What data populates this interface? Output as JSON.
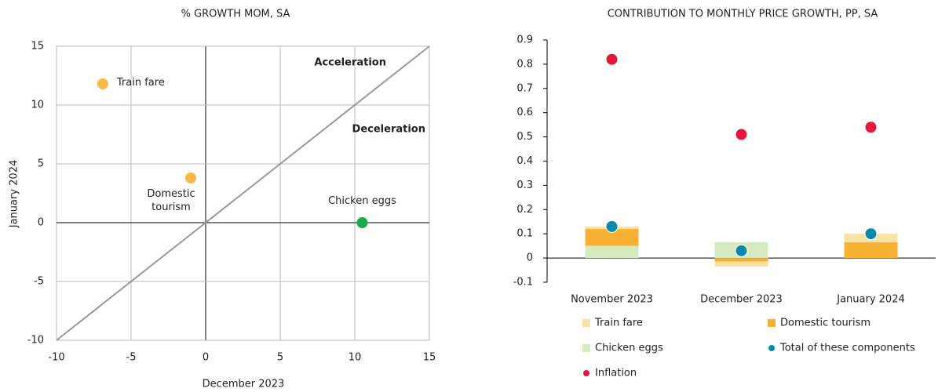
{
  "chart_data": [
    {
      "type": "scatter",
      "title": "% GROWTH MOM, SA",
      "x_label": "December 2023",
      "y_label": "January 2024",
      "xlim": [
        -10,
        15
      ],
      "ylim": [
        -10,
        15
      ],
      "xticks": [
        -10,
        -5,
        0,
        5,
        10,
        15
      ],
      "yticks": [
        -10,
        -5,
        0,
        5,
        10,
        15
      ],
      "grid": true,
      "annotations": [
        "Acceleration",
        "Deceleration"
      ],
      "series": [
        {
          "name": "Train fare",
          "color": "#f9b84a",
          "x": [
            -6.9
          ],
          "values": [
            11.8
          ]
        },
        {
          "name": "Domestic tourism",
          "color": "#f9b84a",
          "x": [
            -1
          ],
          "values": [
            3.8
          ]
        },
        {
          "name": "Chicken eggs",
          "color": "#1aab4a",
          "x": [
            10.5
          ],
          "values": [
            0
          ]
        }
      ]
    },
    {
      "type": "bar",
      "title": "CONTRIBUTION TO MONTHLY PRICE GROWTH, PP, SA",
      "categories": [
        "November 2023",
        "December 2023",
        "January 2024"
      ],
      "ylim": [
        -0.1,
        0.9
      ],
      "yticks": [
        -0.1,
        0,
        0.1,
        0.2,
        0.3,
        0.4,
        0.5,
        0.6,
        0.7,
        0.8,
        0.9
      ],
      "grid": false,
      "series": [
        {
          "name": "Train fare",
          "type": "bar",
          "color": "#fbe2a2",
          "values": [
            0.01,
            -0.02,
            0.035
          ]
        },
        {
          "name": "Domestic tourism",
          "type": "bar",
          "color": "#f8b133",
          "values": [
            0.07,
            -0.015,
            0.065
          ]
        },
        {
          "name": "Chicken eggs",
          "type": "bar",
          "color": "#d6eac2",
          "values": [
            0.05,
            0.065,
            0
          ]
        },
        {
          "name": "Total of these components",
          "type": "scatter",
          "color": "#0b87a8",
          "values": [
            0.13,
            0.03,
            0.1
          ]
        },
        {
          "name": "Inflation",
          "type": "scatter",
          "color": "#e3173e",
          "values": [
            0.82,
            0.51,
            0.54
          ]
        }
      ]
    }
  ]
}
